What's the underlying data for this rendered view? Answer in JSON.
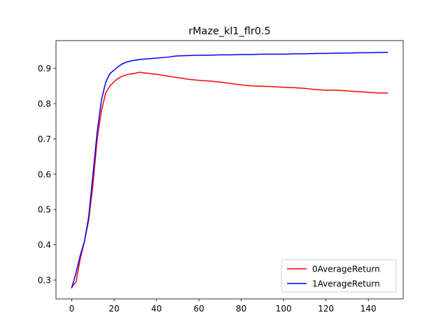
{
  "chart_data": {
    "type": "line",
    "title": "rMaze_kl1_flr0.5",
    "xlabel": "",
    "ylabel": "",
    "xlim": [
      -7.45,
      156.45
    ],
    "ylim": [
      0.2465,
      0.9785
    ],
    "xticks": [
      0,
      20,
      40,
      60,
      80,
      100,
      120,
      140
    ],
    "yticks": [
      0.3,
      0.4,
      0.5,
      0.6,
      0.7,
      0.8,
      0.9
    ],
    "ytick_labels": [
      "0.3",
      "0.4",
      "0.5",
      "0.6",
      "0.7",
      "0.8",
      "0.9"
    ],
    "grid": false,
    "legend_position": "lower right",
    "x": [
      0,
      2,
      4,
      6,
      8,
      10,
      12,
      14,
      16,
      18,
      20,
      22,
      24,
      26,
      28,
      30,
      32,
      34,
      36,
      38,
      40,
      42,
      44,
      46,
      48,
      50,
      55,
      60,
      65,
      70,
      75,
      80,
      85,
      90,
      95,
      100,
      105,
      110,
      115,
      120,
      125,
      130,
      135,
      140,
      145,
      149
    ],
    "series": [
      {
        "name": "0AverageReturn",
        "color": "#ff0000",
        "values": [
          0.28,
          0.295,
          0.36,
          0.41,
          0.47,
          0.57,
          0.7,
          0.78,
          0.83,
          0.85,
          0.862,
          0.872,
          0.878,
          0.882,
          0.884,
          0.886,
          0.889,
          0.887,
          0.886,
          0.884,
          0.883,
          0.881,
          0.879,
          0.877,
          0.875,
          0.874,
          0.869,
          0.866,
          0.864,
          0.861,
          0.857,
          0.853,
          0.85,
          0.849,
          0.848,
          0.846,
          0.845,
          0.843,
          0.84,
          0.838,
          0.838,
          0.836,
          0.834,
          0.832,
          0.83,
          0.83
        ]
      },
      {
        "name": "1AverageReturn",
        "color": "#0000ff",
        "values": [
          0.278,
          0.32,
          0.37,
          0.41,
          0.48,
          0.6,
          0.72,
          0.81,
          0.86,
          0.885,
          0.895,
          0.905,
          0.913,
          0.918,
          0.921,
          0.923,
          0.925,
          0.926,
          0.927,
          0.928,
          0.929,
          0.93,
          0.931,
          0.932,
          0.934,
          0.935,
          0.936,
          0.937,
          0.937,
          0.938,
          0.938,
          0.939,
          0.939,
          0.94,
          0.94,
          0.94,
          0.941,
          0.941,
          0.942,
          0.942,
          0.943,
          0.943,
          0.944,
          0.944,
          0.945,
          0.945
        ]
      }
    ]
  }
}
